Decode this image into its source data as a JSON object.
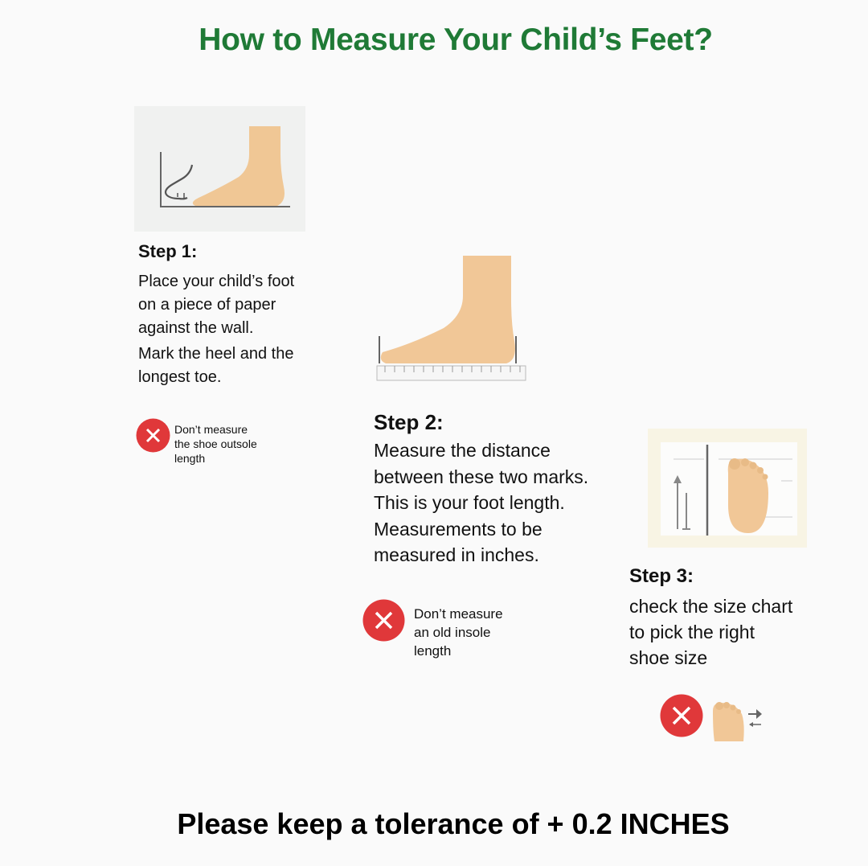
{
  "title": "How to Measure Your Child’s Feet?",
  "steps": [
    {
      "heading": "Step 1:",
      "lines": [
        "Place your child’s foot",
        "on a piece of paper",
        "against the wall.",
        "Mark the heel and the",
        "longest toe."
      ],
      "warning": {
        "icon": "x-circle-icon",
        "lines": [
          "Don’t measure",
          "the shoe outsole",
          "length"
        ]
      }
    },
    {
      "heading": "Step 2:",
      "lines": [
        "Measure the distance",
        "between these two marks.",
        "This is your foot length.",
        "Measurements to be",
        "measured in inches."
      ],
      "warning": {
        "icon": "x-circle-icon",
        "lines": [
          "Don’t measure",
          "an old insole",
          "length"
        ]
      }
    },
    {
      "heading": "Step 3:",
      "lines": [
        "check the size chart",
        "to pick the right",
        "shoe size"
      ],
      "warning": {
        "icon": "x-circle-icon"
      }
    }
  ],
  "footer": "Please keep a tolerance of + 0.2 INCHES",
  "colors": {
    "title": "#1f7a36",
    "warning": "#e0383a",
    "skin": "#f1c797"
  }
}
